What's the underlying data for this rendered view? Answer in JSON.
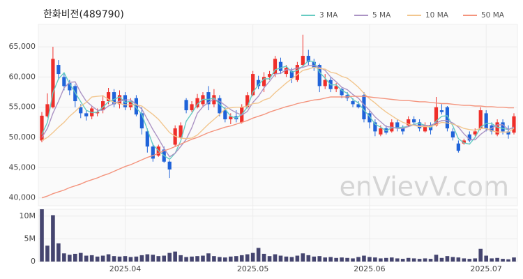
{
  "chart_data": [
    {
      "type": "candlestick",
      "title": "한화비전(489790)",
      "watermark": "enVievV.com",
      "categories": [
        null,
        null,
        null,
        null,
        null,
        null,
        null,
        null,
        null,
        null,
        null,
        null,
        null,
        null,
        null,
        "2025.04",
        null,
        null,
        null,
        null,
        null,
        null,
        null,
        null,
        null,
        null,
        null,
        null,
        null,
        null,
        null,
        null,
        null,
        null,
        null,
        null,
        null,
        null,
        "2025.05",
        null,
        null,
        null,
        null,
        null,
        null,
        null,
        null,
        null,
        null,
        null,
        null,
        null,
        null,
        null,
        null,
        null,
        null,
        null,
        null,
        "2025.06",
        null,
        null,
        null,
        null,
        null,
        null,
        null,
        null,
        null,
        null,
        null,
        null,
        null,
        null,
        null,
        null,
        null,
        null,
        null,
        null,
        "2025.07",
        null,
        null,
        null,
        null,
        null
      ],
      "open": [
        49500,
        53500,
        55000,
        62000,
        60000,
        59000,
        58500,
        55000,
        54000,
        53500,
        54000,
        54500,
        56000,
        57500,
        55500,
        57000,
        55000,
        56500,
        54000,
        51000,
        48500,
        47000,
        48000,
        46000,
        48800,
        50000,
        56200,
        54500,
        55000,
        55500,
        57500,
        55500,
        56500,
        54500,
        53000,
        53500,
        52500,
        55000,
        57000,
        59500,
        58500,
        60000,
        60500,
        62500,
        60500,
        61000,
        59500,
        62000,
        63500,
        62500,
        62000,
        58500,
        59500,
        58000,
        58000,
        57000,
        56000,
        55500,
        57000,
        54000,
        52500,
        50500,
        51500,
        51000,
        52500,
        51500,
        52000,
        53000,
        52500,
        51000,
        52000,
        52000,
        54500,
        55000,
        51000,
        49000,
        49000,
        50500,
        50500,
        51500,
        54000,
        52000,
        50500,
        52500,
        51000,
        50800
      ],
      "high": [
        54200,
        57300,
        65000,
        62800,
        60500,
        59500,
        58800,
        55500,
        54500,
        55200,
        54800,
        57000,
        58200,
        58000,
        57800,
        57500,
        56500,
        57000,
        55000,
        51500,
        49000,
        48800,
        48500,
        46200,
        52000,
        52500,
        56500,
        56000,
        57200,
        57500,
        58500,
        58000,
        57000,
        55000,
        54000,
        54500,
        55500,
        57500,
        61000,
        60200,
        60800,
        61000,
        63500,
        63200,
        62000,
        61500,
        62500,
        67000,
        64500,
        63000,
        62200,
        60500,
        60000,
        59000,
        58200,
        57500,
        56500,
        56000,
        57500,
        54500,
        53000,
        52000,
        52000,
        53000,
        53000,
        52000,
        53500,
        53500,
        53000,
        52500,
        52500,
        56700,
        55500,
        55200,
        51500,
        49500,
        49800,
        51000,
        51500,
        55000,
        54500,
        52500,
        53000,
        53000,
        52000,
        54000
      ],
      "low": [
        49200,
        53300,
        54800,
        59500,
        57800,
        57000,
        55000,
        53200,
        52800,
        53000,
        53500,
        54000,
        55500,
        55000,
        54800,
        54500,
        54500,
        53500,
        50500,
        47500,
        46000,
        46800,
        45800,
        43300,
        48500,
        49800,
        54000,
        54200,
        54800,
        55000,
        54500,
        55000,
        53500,
        52500,
        52200,
        52500,
        52300,
        54800,
        56800,
        58000,
        57500,
        59500,
        60000,
        60500,
        60000,
        59000,
        59200,
        61800,
        62000,
        61000,
        57500,
        58000,
        57500,
        57500,
        56500,
        56000,
        55000,
        54800,
        52500,
        51500,
        50200,
        50200,
        50500,
        50800,
        51000,
        50500,
        51800,
        52000,
        51000,
        50800,
        50500,
        51800,
        53800,
        51000,
        49500,
        47500,
        48800,
        49200,
        50200,
        51200,
        51000,
        50500,
        50200,
        50500,
        49800,
        50500
      ],
      "close": [
        53600,
        55500,
        63000,
        60500,
        58500,
        57800,
        56000,
        54000,
        53500,
        54800,
        54200,
        56000,
        57500,
        55500,
        57000,
        55000,
        56000,
        53800,
        51500,
        48500,
        46500,
        48500,
        46000,
        44700,
        51500,
        52000,
        54500,
        55500,
        56500,
        57000,
        55500,
        57000,
        54000,
        53000,
        53500,
        53000,
        55000,
        57000,
        60500,
        58500,
        60000,
        60500,
        63000,
        61000,
        61500,
        59800,
        62000,
        63500,
        62500,
        61500,
        58500,
        59500,
        58000,
        58500,
        57000,
        56500,
        55500,
        55000,
        53000,
        52500,
        51000,
        51500,
        50800,
        52500,
        51500,
        51000,
        53000,
        52500,
        51500,
        52000,
        51200,
        55000,
        54200,
        51500,
        50000,
        47800,
        49500,
        49500,
        51000,
        54500,
        51500,
        51000,
        52500,
        51000,
        50500,
        53500
      ],
      "colors": {
        "up": "#ef2f2a",
        "down": "#1f63d9"
      },
      "series": [
        {
          "name": "3 MA",
          "color": "#66cbc2",
          "values": [
            50500,
            52500,
            57400,
            59700,
            60700,
            58900,
            57400,
            55900,
            54500,
            54100,
            54200,
            55000,
            55900,
            56300,
            56700,
            55800,
            56000,
            54900,
            53800,
            51300,
            48800,
            47800,
            47000,
            46400,
            47400,
            49400,
            52700,
            54000,
            55500,
            56300,
            56300,
            56500,
            55500,
            54700,
            53500,
            53200,
            53800,
            55000,
            57500,
            58700,
            59700,
            59700,
            61200,
            61500,
            61800,
            60800,
            61100,
            61800,
            62700,
            62500,
            60800,
            59800,
            58700,
            58700,
            57800,
            57300,
            56300,
            55700,
            54500,
            53500,
            52200,
            51700,
            51100,
            51600,
            51600,
            51700,
            51800,
            52200,
            52300,
            52000,
            51600,
            52700,
            53500,
            53600,
            51900,
            49800,
            49100,
            48900,
            50000,
            51700,
            52300,
            52300,
            51700,
            51500,
            51300,
            51700
          ]
        },
        {
          "name": "5 MA",
          "color": "#ab93c4",
          "values": [
            50000,
            51500,
            54000,
            56000,
            58200,
            59100,
            59200,
            57400,
            56000,
            55200,
            54500,
            54500,
            55200,
            55600,
            56000,
            56200,
            56200,
            55500,
            54700,
            53000,
            51300,
            49800,
            48200,
            46800,
            47400,
            48500,
            49700,
            51600,
            54000,
            55100,
            55800,
            56300,
            56000,
            55300,
            54600,
            54100,
            53700,
            54300,
            55800,
            56800,
            58200,
            59300,
            60500,
            60600,
            61200,
            61200,
            61500,
            61600,
            61900,
            61900,
            61600,
            61100,
            60000,
            59200,
            58300,
            57900,
            57100,
            56500,
            55400,
            54500,
            53400,
            52600,
            51800,
            51700,
            51500,
            51500,
            51800,
            52100,
            51900,
            52000,
            52000,
            52400,
            52800,
            52800,
            52400,
            51700,
            50600,
            49700,
            49600,
            50500,
            51200,
            51500,
            52100,
            52100,
            51300,
            51700
          ]
        },
        {
          "name": "10 MA",
          "color": "#f2c68e",
          "values": [
            49500,
            50000,
            50800,
            51700,
            52500,
            53500,
            54300,
            55200,
            55800,
            56700,
            56800,
            56900,
            56300,
            55800,
            55600,
            55400,
            55400,
            55400,
            55200,
            54500,
            53800,
            53000,
            51900,
            50800,
            50200,
            49900,
            49800,
            49900,
            50400,
            51300,
            52200,
            53000,
            53800,
            54700,
            54900,
            55000,
            55000,
            55200,
            55600,
            55700,
            56200,
            56500,
            57400,
            58200,
            59000,
            59700,
            60400,
            61100,
            61300,
            61600,
            61400,
            61300,
            60800,
            60600,
            60100,
            59800,
            59100,
            58300,
            57300,
            56400,
            55700,
            54900,
            54200,
            53600,
            53000,
            52500,
            52200,
            52000,
            51800,
            51800,
            51800,
            52100,
            52500,
            52400,
            52200,
            51900,
            51500,
            51300,
            51200,
            51500,
            51500,
            51100,
            50900,
            50900,
            50900,
            51500
          ]
        },
        {
          "name": "50 MA",
          "color": "#f4947d",
          "values": [
            40000,
            40300,
            40700,
            41000,
            41300,
            41700,
            42000,
            42300,
            42700,
            43000,
            43300,
            43700,
            44000,
            44400,
            44800,
            45200,
            45500,
            45900,
            46300,
            46700,
            47000,
            47400,
            47800,
            48100,
            48500,
            48900,
            49300,
            49700,
            50000,
            50400,
            50800,
            51100,
            51400,
            51700,
            51900,
            52200,
            52500,
            52800,
            53200,
            53500,
            53800,
            54200,
            54500,
            54800,
            55100,
            55300,
            55600,
            55800,
            56000,
            56200,
            56300,
            56500,
            56700,
            56700,
            56700,
            56700,
            56800,
            56800,
            56800,
            56700,
            56600,
            56500,
            56400,
            56300,
            56200,
            56100,
            56100,
            56000,
            55900,
            55900,
            55800,
            55700,
            55600,
            55600,
            55500,
            55400,
            55300,
            55300,
            55200,
            55200,
            55100,
            55100,
            55000,
            55000,
            54900,
            54900
          ]
        }
      ],
      "ylim": [
        38700,
        68700
      ],
      "yticks": [
        {
          "value": 40000,
          "label": "40,000"
        },
        {
          "value": 45000,
          "label": "45,000"
        },
        {
          "value": 50000,
          "label": "50,000"
        },
        {
          "value": 55000,
          "label": "55,000"
        },
        {
          "value": 60000,
          "label": "60,000"
        },
        {
          "value": 65000,
          "label": "65,000"
        }
      ],
      "grid": true
    },
    {
      "type": "bar",
      "color": "#45456f",
      "values": [
        11500000,
        3500000,
        10200000,
        4000000,
        1800000,
        1500000,
        1700000,
        1900000,
        1300000,
        1400000,
        1100000,
        1300000,
        1600000,
        1200000,
        1100000,
        1200000,
        1000000,
        1100000,
        1400000,
        1600000,
        1500000,
        1200000,
        1300000,
        1900000,
        2200000,
        1400000,
        1000000,
        1100000,
        1200000,
        1300000,
        1800000,
        1200000,
        1000000,
        900000,
        1100000,
        1200000,
        1400000,
        1600000,
        1900000,
        3000000,
        1700000,
        1200000,
        1600000,
        1300000,
        1100000,
        1000000,
        1300000,
        1800000,
        1400000,
        1100000,
        1200000,
        900000,
        1000000,
        800000,
        900000,
        800000,
        700000,
        1000000,
        1300000,
        1000000,
        900000,
        700000,
        800000,
        900000,
        700000,
        600000,
        800000,
        700000,
        600000,
        700000,
        600000,
        1500000,
        800000,
        1200000,
        1000000,
        900000,
        700000,
        600000,
        700000,
        2800000,
        1300000,
        700000,
        800000,
        600000,
        500000,
        900000
      ],
      "ylim": [
        0,
        11500000
      ],
      "yticks": [
        0,
        {
          "value": 5000000,
          "label": "5M"
        },
        {
          "value": 10000000,
          "label": "10M"
        }
      ],
      "grid": true
    }
  ]
}
